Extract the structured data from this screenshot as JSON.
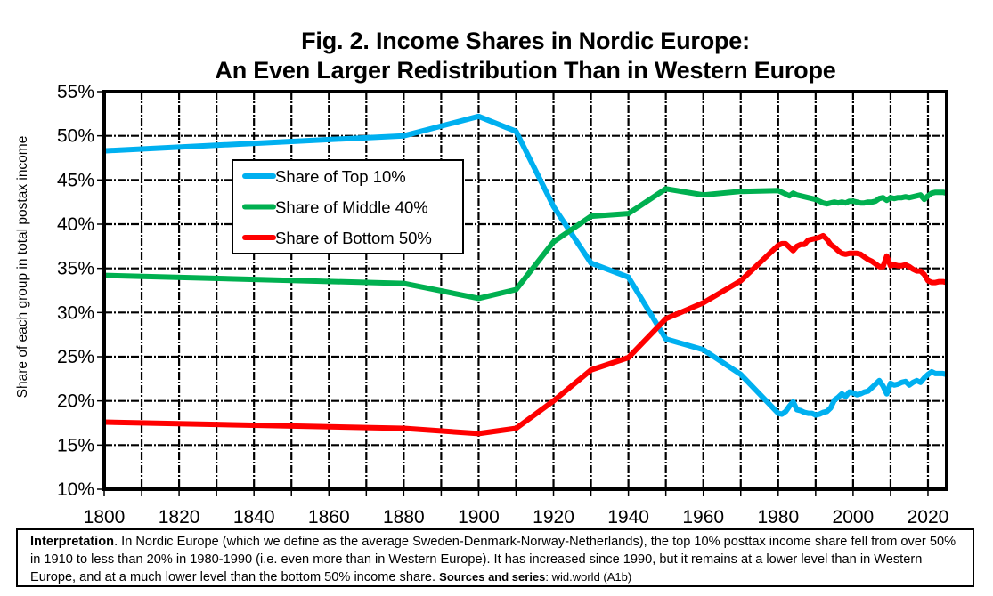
{
  "chart_data": {
    "type": "line",
    "title_line1": "Fig. 2. Income Shares in Nordic Europe:",
    "title_line2": "An Even Larger Redistribution Than in Western Europe",
    "xlabel": "",
    "ylabel": "Share of each group in total postax income",
    "xlim": [
      1800,
      2025
    ],
    "ylim": [
      10,
      55
    ],
    "xticks": [
      1800,
      1820,
      1840,
      1860,
      1880,
      1900,
      1920,
      1940,
      1960,
      1980,
      2000,
      2020
    ],
    "xtick_labels": [
      "1800",
      "1820",
      "1840",
      "1860",
      "1880",
      "1900",
      "1920",
      "1940",
      "1960",
      "1980",
      "2000",
      "2020"
    ],
    "x_minor_grid_step": 10,
    "yticks": [
      10,
      15,
      20,
      25,
      30,
      35,
      40,
      45,
      50,
      55
    ],
    "ytick_labels": [
      "10%",
      "15%",
      "20%",
      "25%",
      "30%",
      "35%",
      "40%",
      "45%",
      "50%",
      "55%"
    ],
    "grid": true,
    "grid_style": "dashed",
    "legend_position": "upper-left-inside",
    "series": [
      {
        "name": "Share of Top 10%",
        "color": "#00B0F0",
        "points": [
          [
            1800,
            48.3
          ],
          [
            1880,
            50.0
          ],
          [
            1900,
            52.2
          ],
          [
            1910,
            50.5
          ],
          [
            1920,
            42.0
          ],
          [
            1930,
            35.6
          ],
          [
            1940,
            34.0
          ],
          [
            1950,
            27.0
          ],
          [
            1960,
            25.8
          ],
          [
            1970,
            23.0
          ],
          [
            1980,
            18.6
          ],
          [
            1981,
            18.5
          ],
          [
            1982,
            18.8
          ],
          [
            1983,
            19.4
          ],
          [
            1984,
            19.9
          ],
          [
            1985,
            19.0
          ],
          [
            1986,
            18.9
          ],
          [
            1987,
            18.7
          ],
          [
            1988,
            18.6
          ],
          [
            1989,
            18.6
          ],
          [
            1990,
            18.4
          ],
          [
            1991,
            18.5
          ],
          [
            1992,
            18.7
          ],
          [
            1993,
            18.8
          ],
          [
            1994,
            19.2
          ],
          [
            1995,
            20.1
          ],
          [
            1996,
            20.4
          ],
          [
            1997,
            20.8
          ],
          [
            1998,
            20.5
          ],
          [
            1999,
            21.0
          ],
          [
            2000,
            20.9
          ],
          [
            2001,
            20.7
          ],
          [
            2002,
            20.8
          ],
          [
            2003,
            21.0
          ],
          [
            2004,
            21.1
          ],
          [
            2005,
            21.5
          ],
          [
            2006,
            21.9
          ],
          [
            2007,
            22.3
          ],
          [
            2008,
            21.7
          ],
          [
            2009,
            20.8
          ],
          [
            2010,
            22.0
          ],
          [
            2011,
            21.8
          ],
          [
            2012,
            21.9
          ],
          [
            2013,
            22.1
          ],
          [
            2014,
            22.2
          ],
          [
            2015,
            21.8
          ],
          [
            2016,
            22.1
          ],
          [
            2017,
            22.3
          ],
          [
            2018,
            22.1
          ],
          [
            2019,
            22.6
          ],
          [
            2020,
            23.0
          ],
          [
            2021,
            23.3
          ],
          [
            2022,
            23.1
          ],
          [
            2023,
            23.1
          ],
          [
            2024,
            23.1
          ],
          [
            2025,
            23.0
          ]
        ]
      },
      {
        "name": "Share of Middle 40%",
        "color": "#00B050",
        "points": [
          [
            1800,
            34.2
          ],
          [
            1880,
            33.3
          ],
          [
            1900,
            31.6
          ],
          [
            1910,
            32.6
          ],
          [
            1920,
            38.0
          ],
          [
            1930,
            40.9
          ],
          [
            1940,
            41.2
          ],
          [
            1950,
            44.0
          ],
          [
            1960,
            43.3
          ],
          [
            1970,
            43.7
          ],
          [
            1980,
            43.8
          ],
          [
            1981,
            43.6
          ],
          [
            1982,
            43.4
          ],
          [
            1983,
            43.2
          ],
          [
            1984,
            43.5
          ],
          [
            1985,
            43.3
          ],
          [
            1986,
            43.2
          ],
          [
            1987,
            43.1
          ],
          [
            1988,
            43.0
          ],
          [
            1989,
            42.9
          ],
          [
            1990,
            42.8
          ],
          [
            1991,
            42.6
          ],
          [
            1992,
            42.4
          ],
          [
            1993,
            42.3
          ],
          [
            1994,
            42.4
          ],
          [
            1995,
            42.5
          ],
          [
            1996,
            42.4
          ],
          [
            1997,
            42.5
          ],
          [
            1998,
            42.4
          ],
          [
            1999,
            42.6
          ],
          [
            2000,
            42.6
          ],
          [
            2001,
            42.5
          ],
          [
            2002,
            42.4
          ],
          [
            2003,
            42.4
          ],
          [
            2004,
            42.5
          ],
          [
            2005,
            42.5
          ],
          [
            2006,
            42.6
          ],
          [
            2007,
            42.9
          ],
          [
            2008,
            43.0
          ],
          [
            2009,
            42.7
          ],
          [
            2010,
            43.0
          ],
          [
            2011,
            42.9
          ],
          [
            2012,
            43.0
          ],
          [
            2013,
            43.0
          ],
          [
            2014,
            43.1
          ],
          [
            2015,
            43.0
          ],
          [
            2016,
            43.1
          ],
          [
            2017,
            43.2
          ],
          [
            2018,
            43.3
          ],
          [
            2019,
            42.8
          ],
          [
            2020,
            43.2
          ],
          [
            2021,
            43.5
          ],
          [
            2022,
            43.6
          ],
          [
            2023,
            43.6
          ],
          [
            2024,
            43.6
          ],
          [
            2025,
            43.5
          ]
        ]
      },
      {
        "name": "Share of Bottom 50%",
        "color": "#FF0000",
        "points": [
          [
            1800,
            17.6
          ],
          [
            1880,
            16.9
          ],
          [
            1900,
            16.3
          ],
          [
            1910,
            16.9
          ],
          [
            1920,
            20.0
          ],
          [
            1930,
            23.5
          ],
          [
            1940,
            24.9
          ],
          [
            1950,
            29.3
          ],
          [
            1960,
            31.1
          ],
          [
            1970,
            33.6
          ],
          [
            1980,
            37.6
          ],
          [
            1981,
            37.8
          ],
          [
            1982,
            37.8
          ],
          [
            1983,
            37.4
          ],
          [
            1984,
            37.0
          ],
          [
            1985,
            37.5
          ],
          [
            1986,
            37.7
          ],
          [
            1987,
            37.7
          ],
          [
            1988,
            38.2
          ],
          [
            1989,
            38.3
          ],
          [
            1990,
            38.4
          ],
          [
            1991,
            38.5
          ],
          [
            1992,
            38.7
          ],
          [
            1993,
            38.3
          ],
          [
            1994,
            37.7
          ],
          [
            1995,
            37.4
          ],
          [
            1996,
            37.0
          ],
          [
            1997,
            36.7
          ],
          [
            1998,
            36.6
          ],
          [
            1999,
            36.7
          ],
          [
            2000,
            36.7
          ],
          [
            2001,
            36.7
          ],
          [
            2002,
            36.6
          ],
          [
            2003,
            36.3
          ],
          [
            2004,
            36.0
          ],
          [
            2005,
            35.8
          ],
          [
            2006,
            35.5
          ],
          [
            2007,
            35.2
          ],
          [
            2008,
            35.2
          ],
          [
            2009,
            36.4
          ],
          [
            2010,
            35.3
          ],
          [
            2011,
            35.4
          ],
          [
            2012,
            35.3
          ],
          [
            2013,
            35.3
          ],
          [
            2014,
            35.4
          ],
          [
            2015,
            35.2
          ],
          [
            2016,
            34.9
          ],
          [
            2017,
            34.7
          ],
          [
            2018,
            34.7
          ],
          [
            2019,
            34.3
          ],
          [
            2020,
            33.6
          ],
          [
            2021,
            33.4
          ],
          [
            2022,
            33.4
          ],
          [
            2023,
            33.5
          ],
          [
            2024,
            33.5
          ],
          [
            2025,
            33.4
          ]
        ]
      }
    ]
  },
  "note": {
    "label": "Interpretation",
    "text": ". In Nordic Europe (which we define as the average Sweden-Denmark-Norway-Netherlands), the top 10% posttax income share fell from over 50% in 1910 to less than 20% in 1980-1990 (i.e. even more than in Western Europe). It has increased since 1990, but it remains at a lower level than in Western Europe, and at a much lower level than the bottom 50% income share. ",
    "sources_label": "Sources and series",
    "sources_text": ": wid.world (A1b)"
  }
}
